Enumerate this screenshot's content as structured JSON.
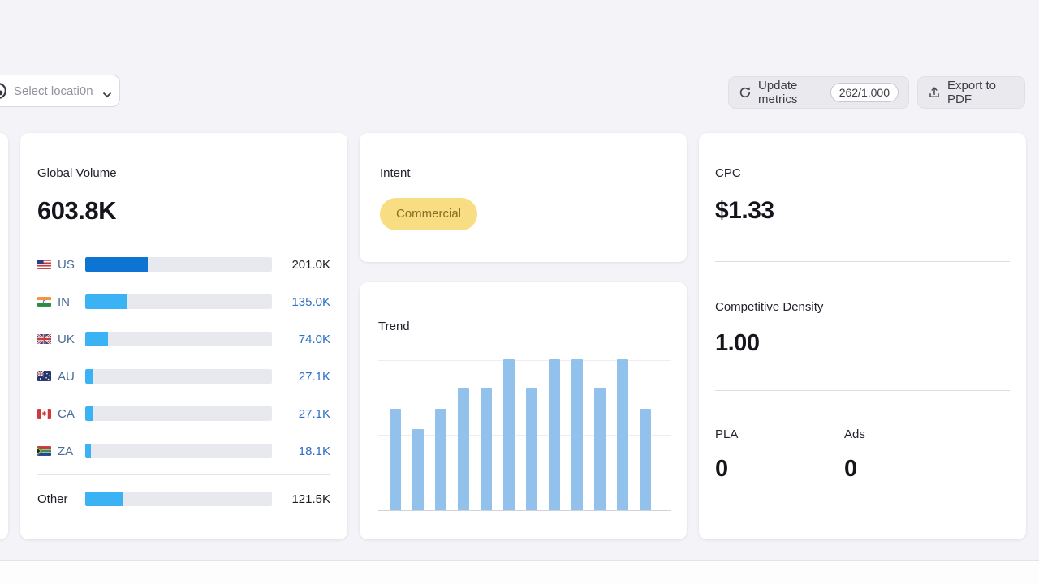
{
  "colors": {
    "page_bg": "#f4f3f8",
    "card_bg": "#ffffff",
    "us_bar": "#0d74d1",
    "country_bar": "#3ab2f3",
    "bar_track": "#e8e9ee",
    "trend_bar": "#92c1ec",
    "link_blue": "#2f6fc6",
    "country_code_text": "#4b6b96",
    "intent_badge_bg": "#f8dd82",
    "intent_badge_text": "#8a6c22"
  },
  "toolbar": {
    "location_selector": {
      "label": "Select locati0n",
      "icon": "location-globe-icon",
      "chevron": "chevron-down-icon"
    },
    "update_metrics": {
      "label": "Update metrics",
      "counter": "262/1,000",
      "icon": "refresh-icon"
    },
    "export_pdf": {
      "label": "Export to PDF",
      "icon": "export-up-icon"
    }
  },
  "global_volume": {
    "title": "Global Volume",
    "value": "603.8K",
    "rows": [
      {
        "code": "US",
        "flag": "us",
        "value": "201.0K",
        "fraction": 0.333,
        "bar_color": "#0d74d1",
        "value_style": "dark"
      },
      {
        "code": "IN",
        "flag": "in",
        "value": "135.0K",
        "fraction": 0.224,
        "bar_color": "#3ab2f3",
        "value_style": "link"
      },
      {
        "code": "UK",
        "flag": "uk",
        "value": "74.0K",
        "fraction": 0.123,
        "bar_color": "#3ab2f3",
        "value_style": "link"
      },
      {
        "code": "AU",
        "flag": "au",
        "value": "27.1K",
        "fraction": 0.045,
        "bar_color": "#3ab2f3",
        "value_style": "link"
      },
      {
        "code": "CA",
        "flag": "ca",
        "value": "27.1K",
        "fraction": 0.045,
        "bar_color": "#3ab2f3",
        "value_style": "link"
      },
      {
        "code": "ZA",
        "flag": "za",
        "value": "18.1K",
        "fraction": 0.03,
        "bar_color": "#3ab2f3",
        "value_style": "link"
      }
    ],
    "other": {
      "label": "Other",
      "value": "121.5K",
      "fraction": 0.201,
      "bar_color": "#3ab2f3",
      "value_style": "dark"
    }
  },
  "intent": {
    "title": "Intent",
    "badge": "Commercial"
  },
  "trend": {
    "title": "Trend"
  },
  "chart_data": {
    "type": "bar",
    "title": "Trend",
    "categories": [
      "",
      "",
      "",
      "",
      "",
      "",
      "",
      "",
      "",
      "",
      "",
      ""
    ],
    "values": [
      0.67,
      0.54,
      0.67,
      0.81,
      0.81,
      1.0,
      0.81,
      1.0,
      1.0,
      0.81,
      1.0,
      0.67
    ],
    "xlabel": "",
    "ylabel": "",
    "ylim": [
      0,
      1
    ],
    "grid": true,
    "legend": false,
    "bar_color": "#92c1ec"
  },
  "metrics": {
    "cpc": {
      "title": "CPC",
      "value": "$1.33"
    },
    "competitive_density": {
      "title": "Competitive Density",
      "value": "1.00"
    },
    "pla": {
      "title": "PLA",
      "value": "0"
    },
    "ads": {
      "title": "Ads",
      "value": "0"
    }
  }
}
